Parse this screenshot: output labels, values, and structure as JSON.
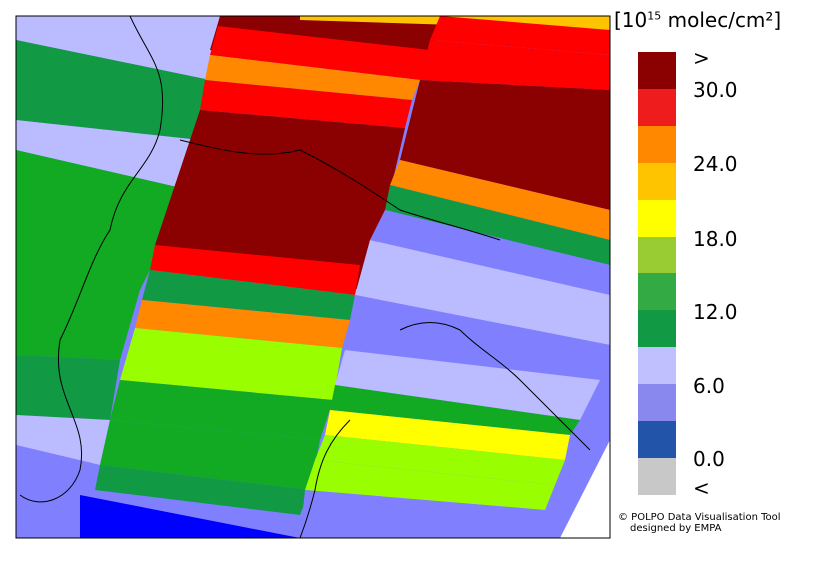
{
  "legend": {
    "unit_prefix": "[10",
    "unit_exp": "15",
    "unit_suffix": " molec/cm²]",
    "labels": [
      ">",
      "30.0",
      "24.0",
      "18.0",
      "12.0",
      "6.0",
      "0.0",
      "<"
    ],
    "colors": [
      "#8b0000",
      "#ee1c1c",
      "#ff8800",
      "#ffc400",
      "#ffff00",
      "#99cc33",
      "#33aa44",
      "#119944",
      "#c0c0ff",
      "#8888ee",
      "#2255aa",
      "#c8c8c8"
    ]
  },
  "credit": {
    "line1": "© POLPO Data Visualisation Tool",
    "line2": "designed by EMPA"
  },
  "map_colors": {
    "darkred": "#8b0000",
    "red": "#ff0000",
    "orange": "#ff8800",
    "yellow": "#ffff00",
    "lime": "#99ff00",
    "green": "#11aa22",
    "darkgreen": "#119944",
    "lavender": "#bbbbff",
    "periwinkle": "#8080ff",
    "blue": "#0000ff"
  }
}
